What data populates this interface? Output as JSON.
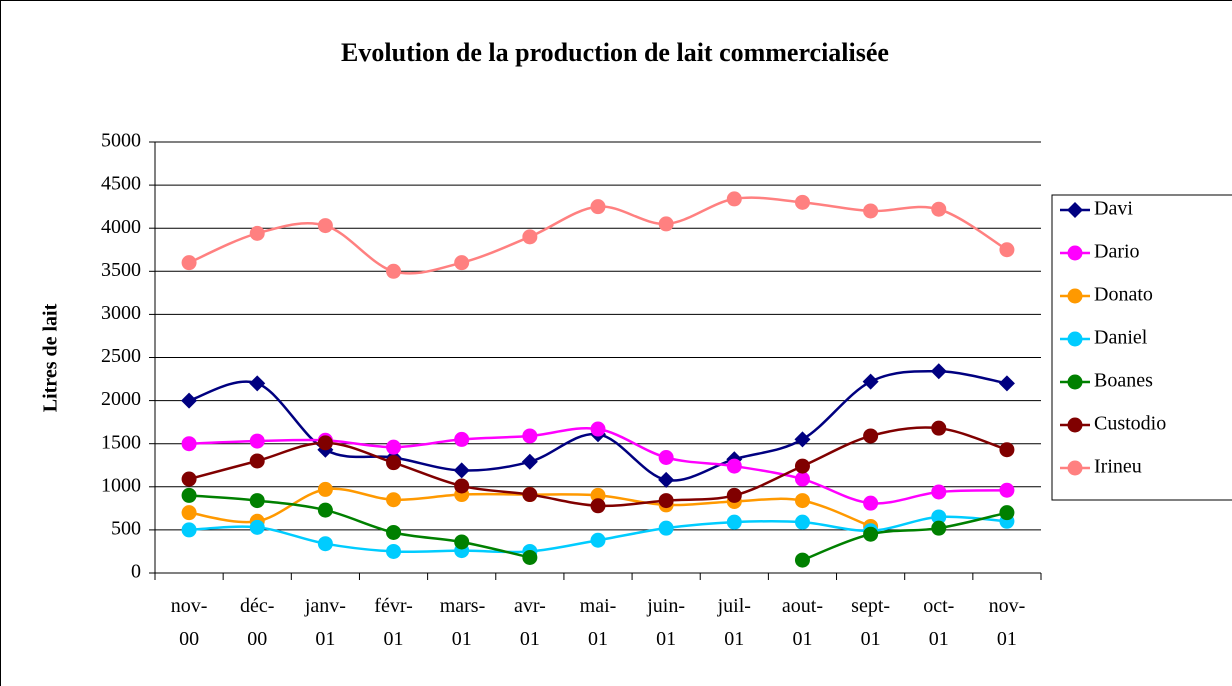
{
  "chart_data": {
    "type": "line",
    "title": "Evolution de la production de lait commercialisée",
    "y_label": "Litres de lait",
    "categories": [
      "nov-00",
      "déc-00",
      "janv-01",
      "févr-01",
      "mars-01",
      "avr-01",
      "mai-01",
      "juin-01",
      "juil-01",
      "aout-01",
      "sept-01",
      "oct-01",
      "nov-01"
    ],
    "series": [
      {
        "name": "Davi",
        "color": "#000080",
        "marker": "diamond",
        "values": [
          2000,
          2200,
          1430,
          1340,
          1190,
          1290,
          1610,
          1080,
          1320,
          1550,
          2220,
          2340,
          2200
        ]
      },
      {
        "name": "Dario",
        "color": "#ff00ff",
        "marker": "circle",
        "values": [
          1500,
          1530,
          1540,
          1460,
          1550,
          1590,
          1670,
          1340,
          1240,
          1090,
          810,
          940,
          960
        ]
      },
      {
        "name": "Donato",
        "color": "#ff9900",
        "marker": "circle",
        "values": [
          700,
          600,
          970,
          850,
          910,
          910,
          900,
          790,
          830,
          840,
          540,
          null,
          null
        ]
      },
      {
        "name": "Daniel",
        "color": "#00ccff",
        "marker": "circle",
        "values": [
          500,
          530,
          340,
          250,
          260,
          250,
          380,
          520,
          590,
          590,
          490,
          650,
          600
        ]
      },
      {
        "name": "Boanes",
        "color": "#008000",
        "marker": "circle",
        "values": [
          900,
          840,
          730,
          470,
          360,
          180,
          null,
          null,
          null,
          150,
          450,
          520,
          700
        ]
      },
      {
        "name": "Custodio",
        "color": "#800000",
        "marker": "circle",
        "values": [
          1090,
          1300,
          1510,
          1280,
          1010,
          910,
          780,
          840,
          900,
          1240,
          1590,
          1680,
          1430
        ]
      },
      {
        "name": "Irineu",
        "color": "#ff8080",
        "marker": "circle",
        "values": [
          3600,
          3940,
          4030,
          3500,
          3600,
          3900,
          4250,
          4050,
          4340,
          4300,
          4200,
          4220,
          3750
        ]
      }
    ],
    "ylim": [
      0,
      5000
    ],
    "yticks": [
      0,
      500,
      1000,
      1500,
      2000,
      2500,
      3000,
      3500,
      4000,
      4500,
      5000
    ],
    "grid": true,
    "smooth": true,
    "legend": "right"
  }
}
